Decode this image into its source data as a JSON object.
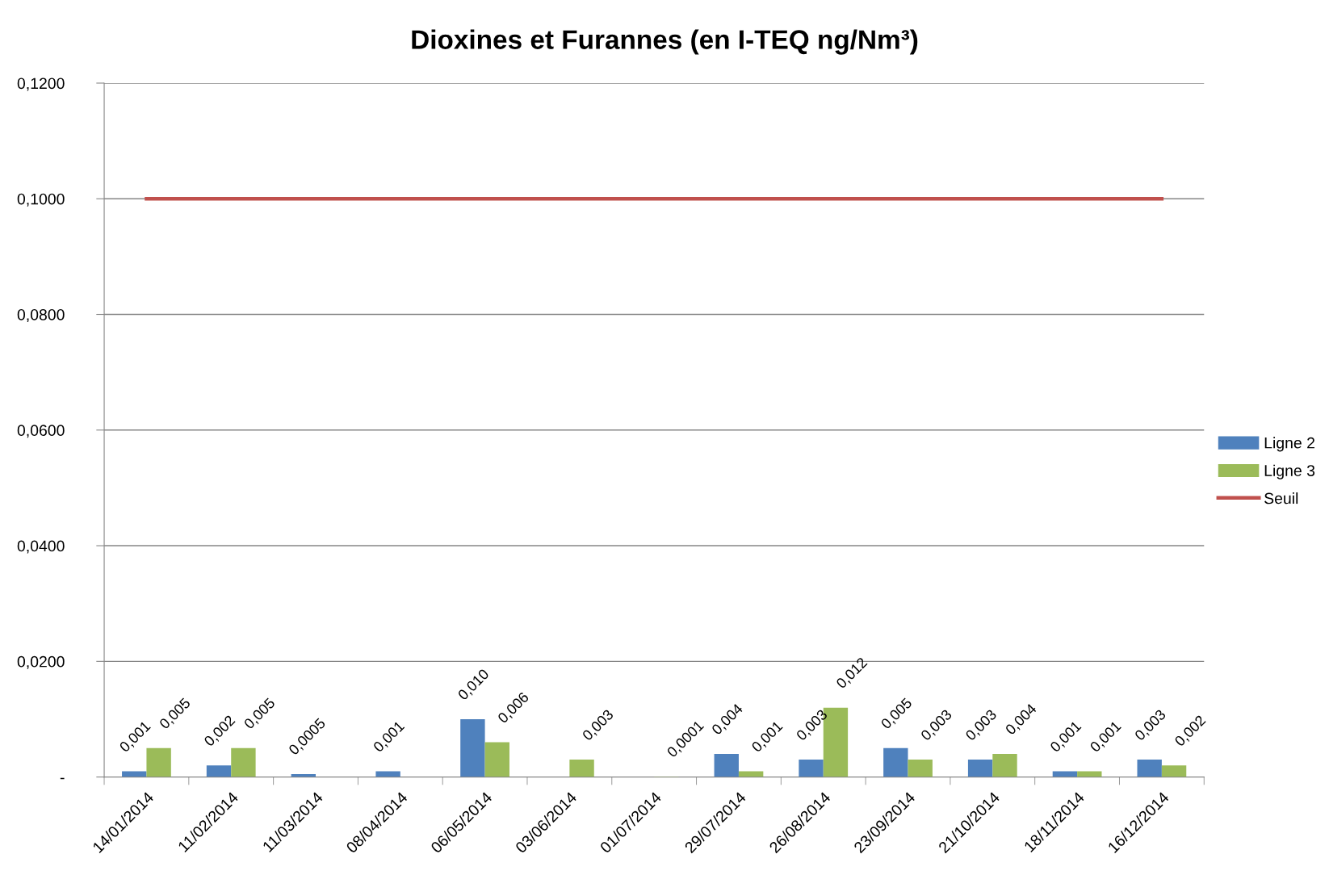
{
  "chart_data": {
    "type": "bar",
    "title": "Dioxines et Furannes (en I-TEQ ng/Nm³)",
    "categories": [
      "14/01/2014",
      "11/02/2014",
      "11/03/2014",
      "08/04/2014",
      "06/05/2014",
      "03/06/2014",
      "01/07/2014",
      "29/07/2014",
      "26/08/2014",
      "23/09/2014",
      "21/10/2014",
      "18/11/2014",
      "16/12/2014"
    ],
    "series": [
      {
        "name": "Ligne 2",
        "color": "#4f81bd",
        "values": [
          0.001,
          0.002,
          0.0005,
          0.001,
          0.01,
          null,
          null,
          0.004,
          0.003,
          0.005,
          0.003,
          0.001,
          0.003
        ],
        "value_labels": [
          "0,001",
          "0,002",
          "0,0005",
          "0,001",
          "0,010",
          null,
          null,
          "0,004",
          "0,003",
          "0,005",
          "0,003",
          "0,001",
          "0,003"
        ]
      },
      {
        "name": "Ligne 3",
        "color": "#9bbb59",
        "values": [
          0.005,
          0.005,
          null,
          null,
          0.006,
          0.003,
          0.0001,
          0.001,
          0.012,
          0.003,
          0.004,
          0.001,
          0.002
        ],
        "value_labels": [
          "0,005",
          "0,005",
          null,
          null,
          "0,006",
          "0,003",
          "0,0001",
          "0,001",
          "0,012",
          "0,003",
          "0,004",
          "0,001",
          "0,002"
        ]
      },
      {
        "name": "Seuil",
        "type": "line",
        "color": "#c0504d",
        "values": [
          0.1,
          0.1,
          0.1,
          0.1,
          0.1,
          0.1,
          0.1,
          0.1,
          0.1,
          0.1,
          0.1,
          0.1,
          0.1
        ]
      }
    ],
    "ylim": [
      0,
      0.12
    ],
    "yticks": [
      {
        "value": 0,
        "label": "-"
      },
      {
        "value": 0.02,
        "label": "0,0200"
      },
      {
        "value": 0.04,
        "label": "0,0400"
      },
      {
        "value": 0.06,
        "label": "0,0600"
      },
      {
        "value": 0.08,
        "label": "0,0800"
      },
      {
        "value": 0.1,
        "label": "0,1000"
      },
      {
        "value": 0.12,
        "label": "0,1200"
      }
    ],
    "grid": "y",
    "legend": "right",
    "marker": "none",
    "line_style": "solid"
  }
}
